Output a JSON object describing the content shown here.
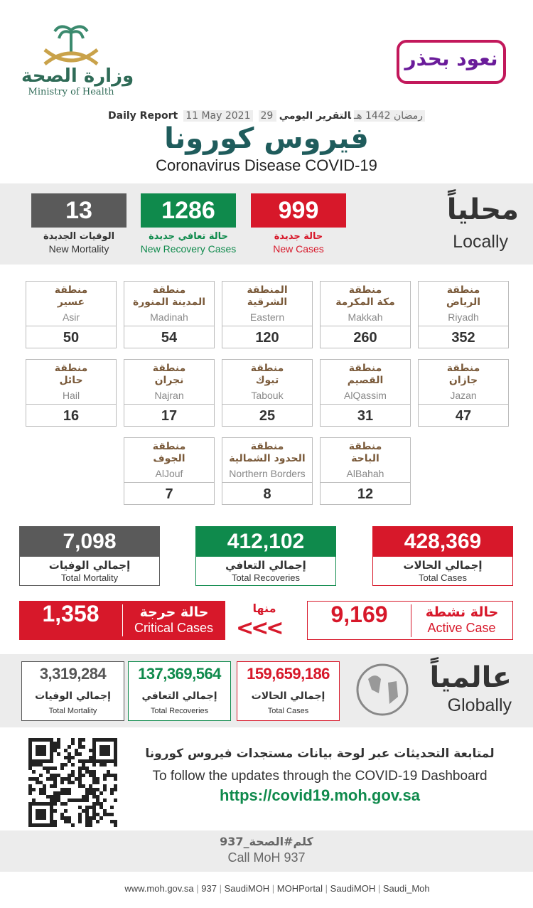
{
  "header": {
    "ministry_ar": "وزارة الصحة",
    "ministry_en": "Ministry of Health",
    "campaign": "نعود بحذر"
  },
  "report": {
    "label_ar": "التقرير اليومي",
    "hijri": "29 رمضان 1442 هـ",
    "gregorian": "11 May 2021",
    "label_en": "Daily Report"
  },
  "title": {
    "ar": "فيروس كورونا",
    "en": "Coronavirus Disease COVID-19"
  },
  "local": {
    "label_ar": "محلياً",
    "label_en": "Locally",
    "stats": [
      {
        "value": "999",
        "label_ar": "حالة جديدة",
        "label_en": "New Cases"
      },
      {
        "value": "1286",
        "label_ar": "حالة تعافي جديدة",
        "label_en": "New Recovery Cases"
      },
      {
        "value": "13",
        "label_ar": "الوفيات الجديدة",
        "label_en": "New Mortality"
      }
    ]
  },
  "regions": [
    {
      "line1": "منطقة",
      "line2": "الرياض",
      "name_en": "Riyadh",
      "value": "352"
    },
    {
      "line1": "منطقة",
      "line2": "مكة المكرمة",
      "name_en": "Makkah",
      "value": "260"
    },
    {
      "line1": "المنطقة",
      "line2": "الشرقية",
      "name_en": "Eastern",
      "value": "120"
    },
    {
      "line1": "منطقة",
      "line2": "المدينة المنورة",
      "name_en": "Madinah",
      "value": "54"
    },
    {
      "line1": "منطقة",
      "line2": "عسير",
      "name_en": "Asir",
      "value": "50"
    },
    {
      "line1": "منطقة",
      "line2": "جازان",
      "name_en": "Jazan",
      "value": "47"
    },
    {
      "line1": "منطقة",
      "line2": "القصيم",
      "name_en": "AlQassim",
      "value": "31"
    },
    {
      "line1": "منطقة",
      "line2": "تبوك",
      "name_en": "Tabouk",
      "value": "25"
    },
    {
      "line1": "منطقة",
      "line2": "نجران",
      "name_en": "Najran",
      "value": "17"
    },
    {
      "line1": "منطقة",
      "line2": "حائل",
      "name_en": "Hail",
      "value": "16"
    },
    {
      "line1": "منطقة",
      "line2": "الباحة",
      "name_en": "AlBahah",
      "value": "12"
    },
    {
      "line1": "منطقة",
      "line2": "الحدود الشمالية",
      "name_en": "Northern Borders",
      "value": "8"
    },
    {
      "line1": "منطقة",
      "line2": "الجوف",
      "name_en": "AlJouf",
      "value": "7"
    }
  ],
  "totals": [
    {
      "value": "428,369",
      "label_ar": "إجمالي الحالات",
      "label_en": "Total Cases"
    },
    {
      "value": "412,102",
      "label_ar": "إجمالي التعافي",
      "label_en": "Total Recoveries"
    },
    {
      "value": "7,098",
      "label_ar": "إجمالي الوفيات",
      "label_en": "Total Mortality"
    }
  ],
  "active": {
    "label_ar": "حالة نشطة",
    "label_en": "Active Case",
    "value": "9,169",
    "of_them": "منها",
    "critical_ar": "حالة حرجة",
    "critical_en": "Critical Cases",
    "critical_value": "1,358"
  },
  "global": {
    "label_ar": "عالمياً",
    "label_en": "Globally",
    "stats": [
      {
        "value": "159,659,186",
        "label_ar": "إجمالي الحالات",
        "label_en": "Total Cases"
      },
      {
        "value": "137,369,564",
        "label_ar": "إجمالي التعافي",
        "label_en": "Total Recoveries"
      },
      {
        "value": "3,319,284",
        "label_ar": "إجمالي الوفيات",
        "label_en": "Total Mortality"
      }
    ]
  },
  "dashboard": {
    "text_ar": "لمتابعة التحديثات عبر لوحة بيانات مستجدات فيروس كورونا",
    "text_en": "To follow the updates through the COVID-19 Dashboard",
    "url": "https://covid19.moh.gov.sa"
  },
  "call": {
    "ar": "كلم#الصحة_937",
    "en": "Call MoH 937"
  },
  "footer": [
    "www.moh.gov.sa",
    "937",
    "SaudiMOH",
    "MOHPortal",
    "SaudiMOH",
    "Saudi_Moh"
  ]
}
